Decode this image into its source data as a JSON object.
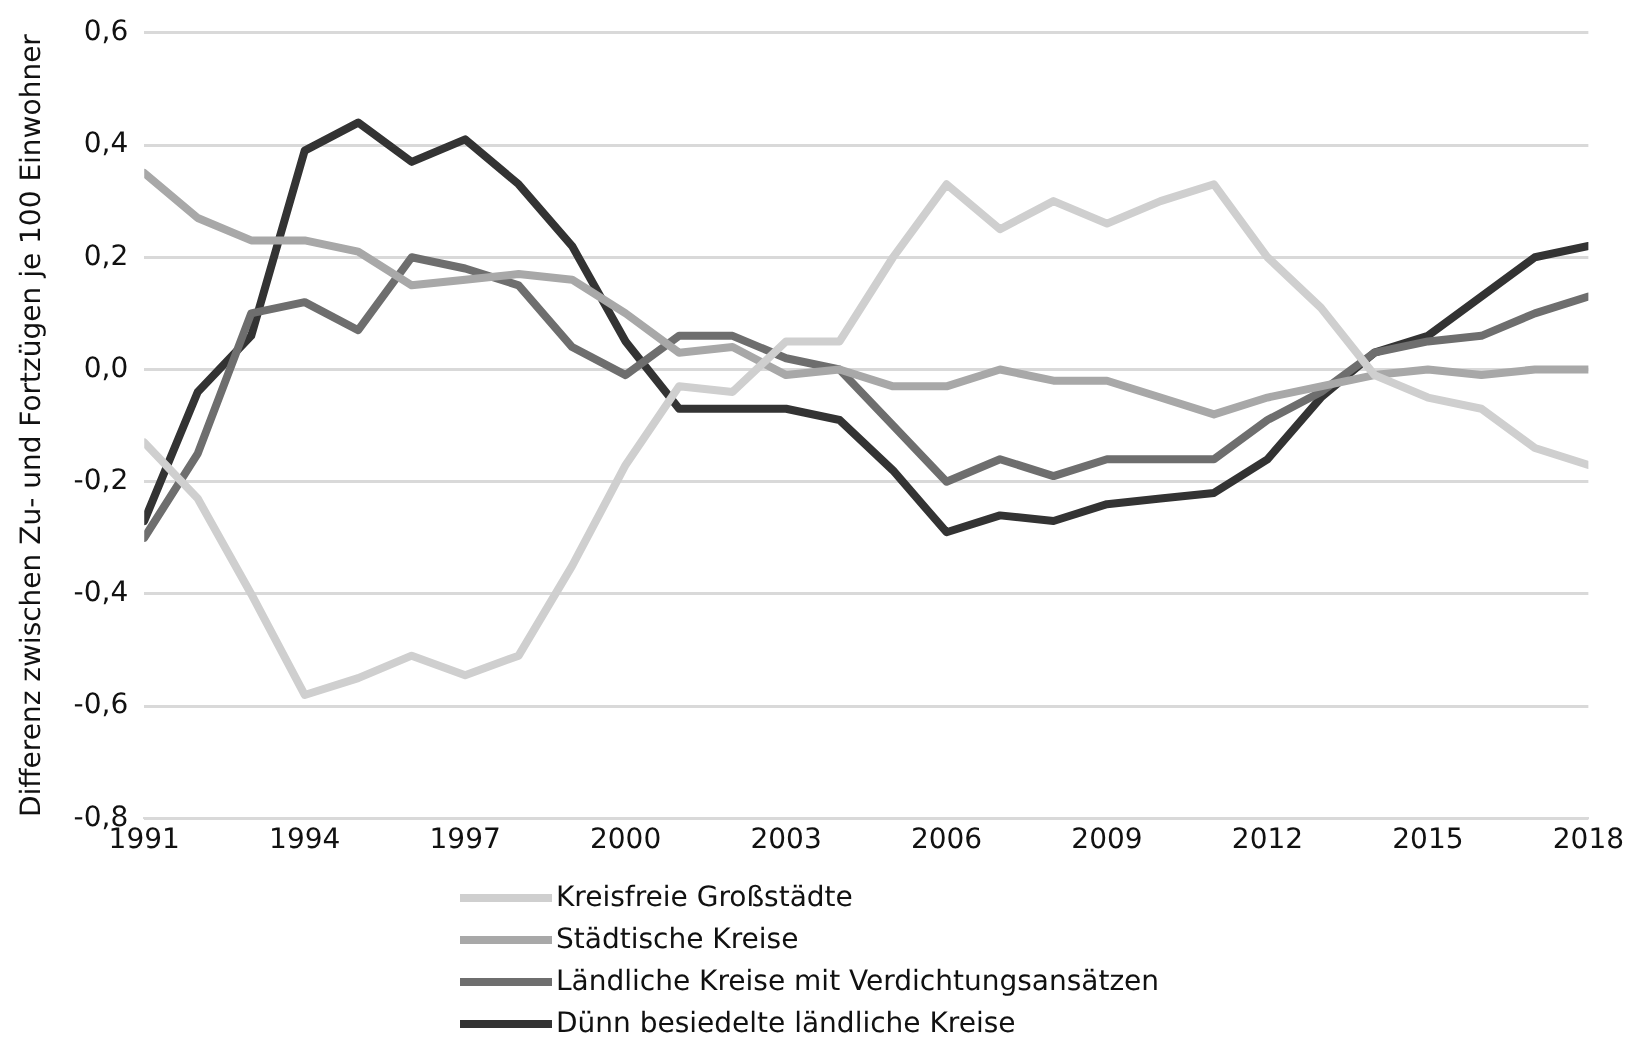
{
  "chart_data": {
    "type": "line",
    "ylabel": "Differenz zwischen Zu- und Fortzügen je 100 Einwohner",
    "x": [
      1991,
      1992,
      1993,
      1994,
      1995,
      1996,
      1997,
      1998,
      1999,
      2000,
      2001,
      2002,
      2003,
      2004,
      2005,
      2006,
      2007,
      2008,
      2009,
      2010,
      2011,
      2012,
      2013,
      2014,
      2015,
      2016,
      2017,
      2018
    ],
    "series": [
      {
        "name": "Kreisfreie Großstädte",
        "color": "#cfcfcf",
        "values": [
          -0.13,
          -0.23,
          -0.4,
          -0.58,
          -0.55,
          -0.51,
          -0.545,
          -0.51,
          -0.35,
          -0.17,
          -0.03,
          -0.04,
          0.05,
          0.05,
          0.2,
          0.33,
          0.25,
          0.3,
          0.26,
          0.3,
          0.33,
          0.2,
          0.11,
          -0.01,
          -0.05,
          -0.07,
          -0.14,
          -0.17
        ]
      },
      {
        "name": "Städtische Kreise",
        "color": "#a8a8a8",
        "values": [
          0.35,
          0.27,
          0.23,
          0.23,
          0.21,
          0.15,
          0.16,
          0.17,
          0.16,
          0.1,
          0.03,
          0.04,
          -0.01,
          0.0,
          -0.03,
          -0.03,
          0.0,
          -0.02,
          -0.02,
          -0.05,
          -0.08,
          -0.05,
          -0.03,
          -0.01,
          0.0,
          -0.01,
          0.0,
          0.0
        ]
      },
      {
        "name": "Ländliche Kreise mit Verdichtungsansätzen",
        "color": "#6e6e6e",
        "values": [
          -0.3,
          -0.15,
          0.1,
          0.12,
          0.07,
          0.2,
          0.18,
          0.15,
          0.04,
          -0.01,
          0.06,
          0.06,
          0.02,
          0.0,
          -0.1,
          -0.2,
          -0.16,
          -0.19,
          -0.16,
          -0.16,
          -0.16,
          -0.09,
          -0.04,
          0.03,
          0.05,
          0.06,
          0.1,
          0.13
        ]
      },
      {
        "name": "Dünn besiedelte ländliche Kreise",
        "color": "#333333",
        "values": [
          -0.27,
          -0.04,
          0.06,
          0.39,
          0.44,
          0.37,
          0.41,
          0.33,
          0.22,
          0.05,
          -0.07,
          -0.07,
          -0.07,
          -0.09,
          -0.18,
          -0.29,
          -0.26,
          -0.27,
          -0.24,
          -0.23,
          -0.22,
          -0.16,
          -0.05,
          0.03,
          0.06,
          0.13,
          0.2,
          0.22
        ]
      }
    ],
    "xlim": [
      1991,
      2018
    ],
    "xticks": [
      1991,
      1994,
      1997,
      2000,
      2003,
      2006,
      2009,
      2012,
      2015,
      2018
    ],
    "ylim": [
      -0.8,
      0.6
    ],
    "yticks": [
      {
        "value": -0.8,
        "label": "-0,8"
      },
      {
        "value": -0.6,
        "label": "-0,6"
      },
      {
        "value": -0.4,
        "label": "-0,4"
      },
      {
        "value": -0.2,
        "label": "-0,2"
      },
      {
        "value": 0,
        "label": "0,0"
      },
      {
        "value": 0.2,
        "label": "0,2"
      },
      {
        "value": 0.4,
        "label": "0,4"
      },
      {
        "value": 0.6,
        "label": "0,6"
      }
    ],
    "grid": "y",
    "legend": "bottom",
    "marker": "none",
    "line_style": "solid"
  }
}
